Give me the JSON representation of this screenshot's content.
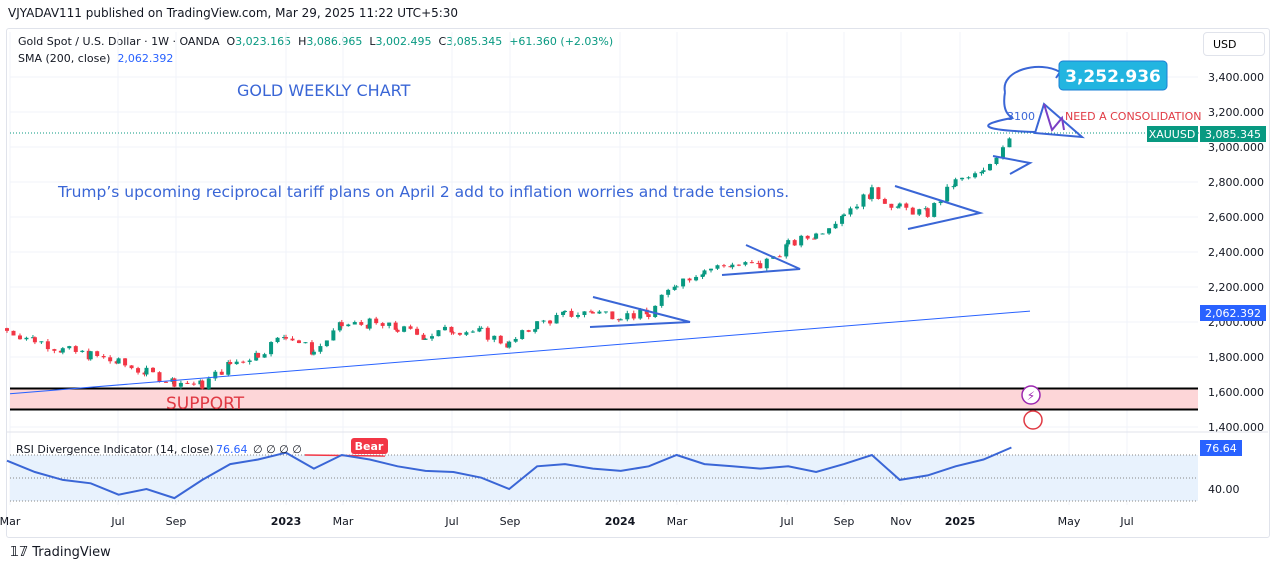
{
  "header": "VJYADAV111 published on TradingView.com, Mar 29, 2025 11:22 UTC+5:30",
  "legend": {
    "symbol": "Gold Spot / U.S. Dollar · 1W · OANDA",
    "o_label": "O",
    "o": "3,023.165",
    "h_label": "H",
    "h": "3,086.965",
    "l_label": "L",
    "l": "3,002.495",
    "c_label": "C",
    "c": "3,085.345",
    "change": "+61.360 (+2.03%)",
    "sma_label": "SMA (200, close)",
    "sma_value": "2,062.392"
  },
  "currency": "USD",
  "footer": "TradingView",
  "colors": {
    "up": "#089981",
    "down": "#f23645",
    "sma": "#2962ff",
    "annotation": "#3a66d6",
    "support_fill": "#fdd6d8",
    "callout": "#22b5e0"
  },
  "annotations": {
    "title": "GOLD WEEKLY CHART",
    "note": "Trump’s upcoming reciprocal tariff plans on April 2 add to inflation worries and trade tensions.",
    "support": "SUPPORT",
    "consolidation": "NEED A CONSOLIDATION",
    "level": "3100",
    "target": "3,252.936",
    "bear": "Bear"
  },
  "rsi": {
    "label": "RSI Divergence Indicator (14, close)",
    "value": "76.64",
    "flags": "∅ ∅ ∅ ∅",
    "tick": "40.00"
  },
  "chart_data": {
    "type": "candlestick",
    "price_axis": {
      "ticks": [
        "3,400.000",
        "3,200.000",
        "3,000.000",
        "2,800.000",
        "2,600.000",
        "2,400.000",
        "2,200.000",
        "2,000.000",
        "1,800.000",
        "1,600.000",
        "1,400.000"
      ],
      "range": [
        1350,
        3500
      ]
    },
    "time_axis": {
      "ticks": [
        "Mar",
        "Jul",
        "Sep",
        "2023",
        "Mar",
        "Jul",
        "Sep",
        "2024",
        "Mar",
        "Jul",
        "Sep",
        "Nov",
        "2025",
        "May",
        "Jul"
      ]
    },
    "monthly_close": [
      [
        "2022-03",
        1950
      ],
      [
        "2022-04",
        1900
      ],
      [
        "2022-05",
        1840
      ],
      [
        "2022-06",
        1810
      ],
      [
        "2022-07",
        1765
      ],
      [
        "2022-08",
        1710
      ],
      [
        "2022-09",
        1660
      ],
      [
        "2022-10",
        1640
      ],
      [
        "2022-11",
        1760
      ],
      [
        "2022-12",
        1820
      ],
      [
        "2023-01",
        1930
      ],
      [
        "2023-02",
        1830
      ],
      [
        "2023-03",
        1980
      ],
      [
        "2023-04",
        1990
      ],
      [
        "2023-05",
        1960
      ],
      [
        "2023-06",
        1920
      ],
      [
        "2023-07",
        1960
      ],
      [
        "2023-08",
        1940
      ],
      [
        "2023-09",
        1870
      ],
      [
        "2023-10",
        1990
      ],
      [
        "2023-11",
        2040
      ],
      [
        "2023-12",
        2060
      ],
      [
        "2024-01",
        2040
      ],
      [
        "2024-02",
        2040
      ],
      [
        "2024-03",
        2230
      ],
      [
        "2024-04",
        2300
      ],
      [
        "2024-05",
        2330
      ],
      [
        "2024-06",
        2320
      ],
      [
        "2024-07",
        2440
      ],
      [
        "2024-08",
        2500
      ],
      [
        "2024-09",
        2630
      ],
      [
        "2024-10",
        2740
      ],
      [
        "2024-11",
        2650
      ],
      [
        "2024-12",
        2620
      ],
      [
        "2025-01",
        2800
      ],
      [
        "2025-02",
        2850
      ],
      [
        "2025-03",
        3085.345
      ]
    ],
    "sma": {
      "name": "SMA (200, close)",
      "start": 1590,
      "end": 2062.392
    },
    "last_price": {
      "label": "XAUUSD",
      "value": "3,085.345"
    },
    "sma_label": "2,062.392",
    "support_zone": [
      1500,
      1620
    ],
    "rsi_monthly": [
      65,
      55,
      48,
      45,
      35,
      40,
      32,
      48,
      62,
      66,
      72,
      58,
      70,
      66,
      60,
      56,
      55,
      50,
      40,
      60,
      62,
      58,
      56,
      60,
      70,
      62,
      60,
      58,
      60,
      55,
      62,
      70,
      48,
      52,
      60,
      66,
      76.64
    ],
    "rsi_ticks": [
      "76.64",
      "40.00"
    ]
  }
}
